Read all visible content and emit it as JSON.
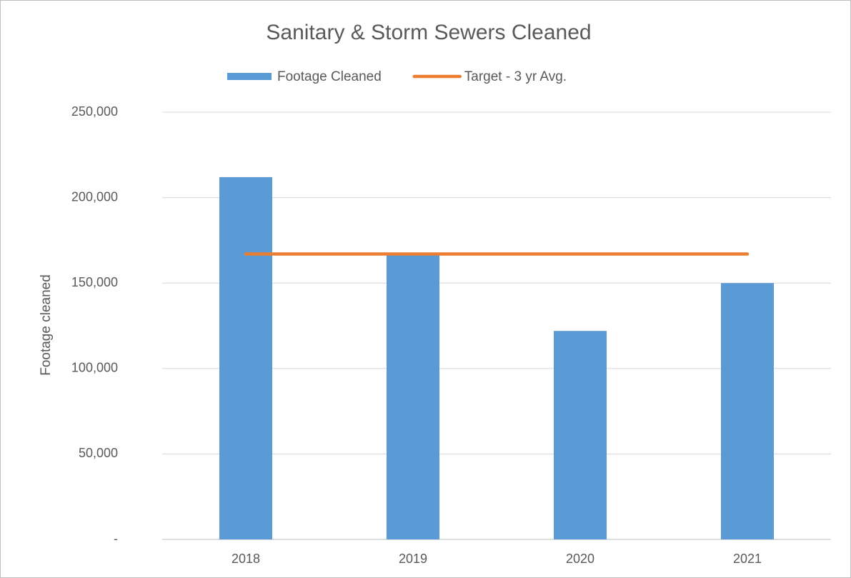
{
  "chart_data": {
    "type": "bar",
    "title": "Sanitary & Storm Sewers Cleaned",
    "y_label": "Footage cleaned",
    "categories": [
      "2018",
      "2019",
      "2020",
      "2021"
    ],
    "series": [
      {
        "name": "Footage Cleaned",
        "type": "bar",
        "color": "#5b9bd5",
        "values": [
          212000,
          167000,
          122000,
          150000
        ]
      },
      {
        "name": "Target - 3 yr Avg.",
        "type": "line",
        "color": "#ed7d31",
        "values": [
          167000,
          167000,
          167000,
          167000
        ]
      }
    ],
    "ylim": [
      0,
      250000
    ],
    "yticks": [
      {
        "value": 0,
        "label": "-"
      },
      {
        "value": 50000,
        "label": "50,000"
      },
      {
        "value": 100000,
        "label": "100,000"
      },
      {
        "value": 150000,
        "label": "150,000"
      },
      {
        "value": 200000,
        "label": "200,000"
      },
      {
        "value": 250000,
        "label": "250,000"
      }
    ],
    "grid": true,
    "legend": "top"
  }
}
